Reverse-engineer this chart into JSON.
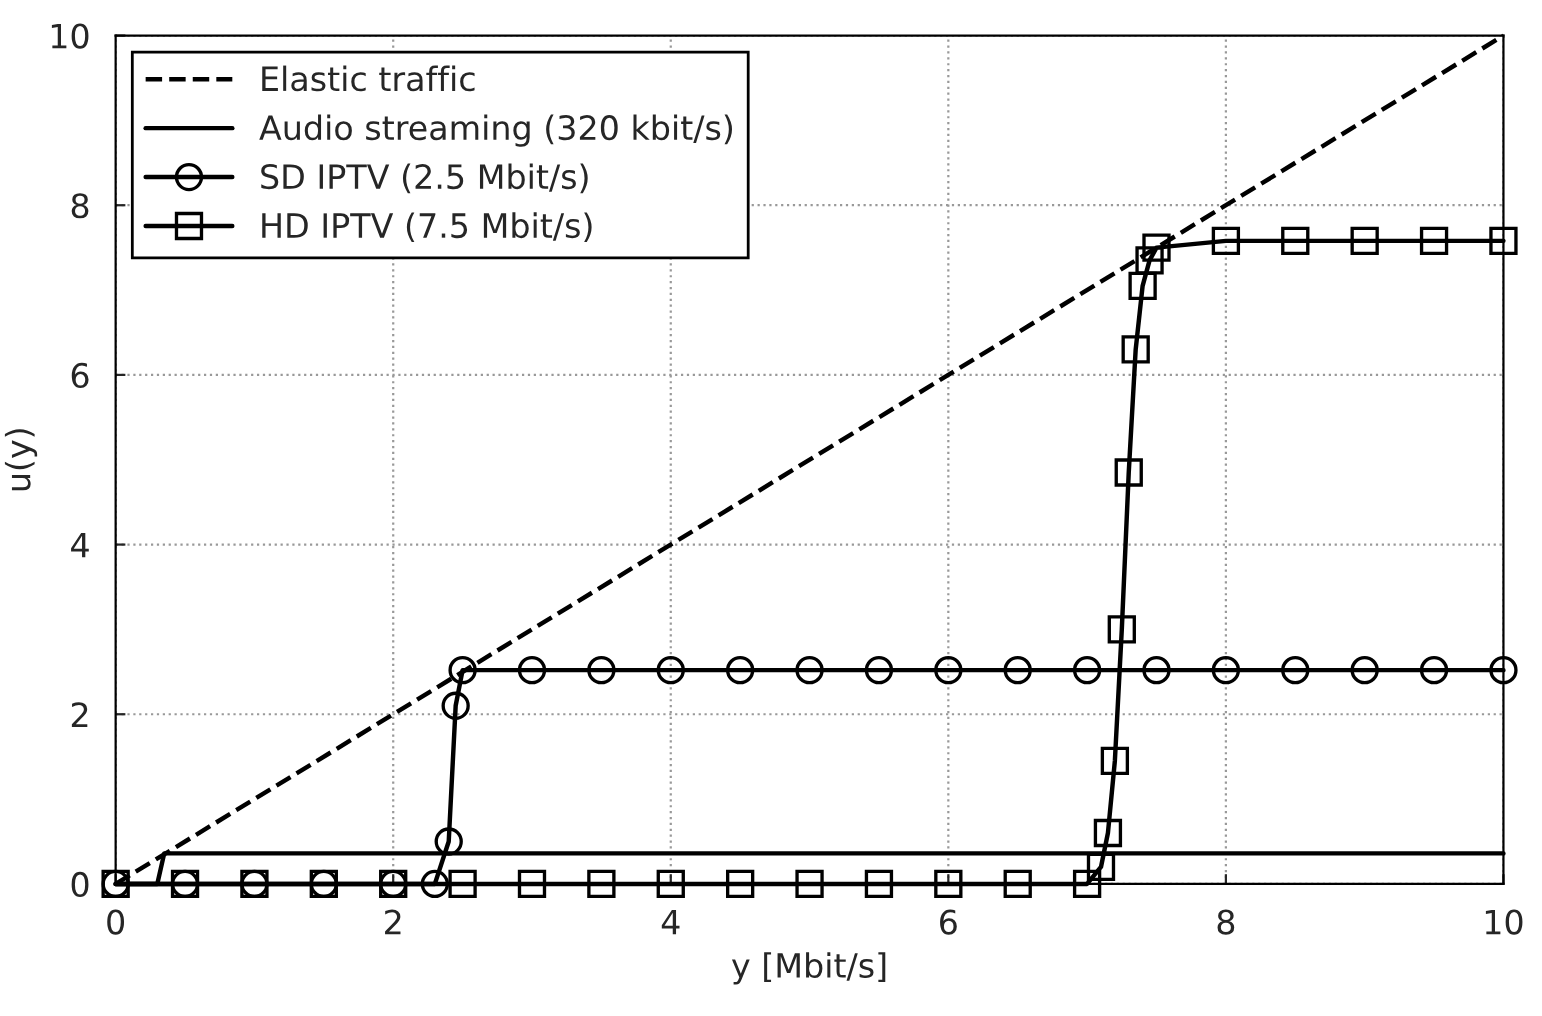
{
  "chart_data": {
    "type": "line",
    "xlabel": "y [Mbit/s]",
    "ylabel": "u(y)",
    "xlim": [
      0,
      10
    ],
    "ylim": [
      0,
      10
    ],
    "xticks": [
      0,
      2,
      4,
      6,
      8,
      10
    ],
    "yticks": [
      0,
      2,
      4,
      6,
      8,
      10
    ],
    "grid": true,
    "legend": "top left",
    "series": [
      {
        "name": "Elastic traffic",
        "color": "#000000",
        "line_style": "dashed",
        "x": [
          0,
          10
        ],
        "values": [
          0,
          10
        ]
      },
      {
        "name": "Audio streaming (320 kbit/s)",
        "color": "#000000",
        "line_style": "solid",
        "x": [
          0,
          0.3,
          0.35,
          10
        ],
        "values": [
          0,
          0,
          0.36,
          0.36
        ]
      },
      {
        "name": "SD IPTV (2.5 Mbit/s)",
        "color": "#000000",
        "line_style": "solid",
        "marker": "circle",
        "x": [
          0,
          0.5,
          1,
          1.5,
          2,
          2.3,
          2.4,
          2.45,
          2.5,
          3,
          3.5,
          4,
          4.5,
          5,
          5.5,
          6,
          6.5,
          7,
          7.5,
          8,
          8.5,
          9,
          9.5,
          10
        ],
        "values": [
          0,
          0,
          0,
          0,
          0,
          0,
          0.5,
          2.1,
          2.52,
          2.52,
          2.52,
          2.52,
          2.52,
          2.52,
          2.52,
          2.52,
          2.52,
          2.52,
          2.52,
          2.52,
          2.52,
          2.52,
          2.52,
          2.52
        ]
      },
      {
        "name": "HD IPTV (7.5 Mbit/s)",
        "color": "#000000",
        "line_style": "solid",
        "marker": "square",
        "x": [
          0,
          0.5,
          1,
          1.5,
          2,
          2.5,
          3,
          3.5,
          4,
          4.5,
          5,
          5.5,
          6,
          6.5,
          7,
          7.1,
          7.15,
          7.2,
          7.25,
          7.3,
          7.35,
          7.4,
          7.45,
          7.5,
          8,
          8.5,
          9,
          9.5,
          10
        ],
        "values": [
          0,
          0,
          0,
          0,
          0,
          0,
          0,
          0,
          0,
          0,
          0,
          0,
          0,
          0,
          0,
          0.2,
          0.6,
          1.45,
          3.0,
          4.85,
          6.3,
          7.05,
          7.35,
          7.5,
          7.58,
          7.58,
          7.58,
          7.58,
          7.58
        ]
      }
    ]
  }
}
